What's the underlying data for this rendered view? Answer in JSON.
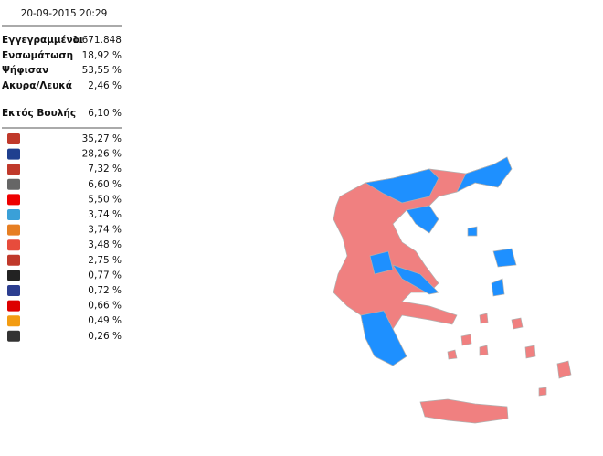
{
  "timestamp": "20-09-2015 20:29",
  "stats": [
    {
      "label": "Εγγεγραμμένοι",
      "value": "1.671.848"
    },
    {
      "label": "Ενσωμάτωση",
      "value": "18,92 %"
    },
    {
      "label": "Ψήφισαν",
      "value": "53,55 %"
    },
    {
      "label": "Ακυρα/Λευκά",
      "value": "2,46 %"
    }
  ],
  "outside_parliament": {
    "label": "Εκτός Βουλής",
    "value": "6,10 %"
  },
  "parties": [
    "35,27 %",
    "28,26 %",
    "7,32 %",
    "6,60 %",
    "5,50 %",
    "3,74 %",
    "3,74 %",
    "3,48 %",
    "2,75 %",
    "0,77 %",
    "0,72 %",
    "0,66 %",
    "0,49 %",
    "0,26 %"
  ]
}
